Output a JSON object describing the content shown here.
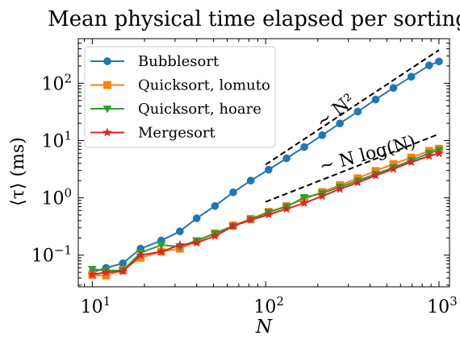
{
  "chart_data": {
    "type": "line",
    "title": "Mean physical time elapsed per sorting",
    "xlabel": "N",
    "ylabel": "⟨τ⟩ (ms)",
    "xscale": "log",
    "yscale": "log",
    "xlim": [
      8.3,
      1150
    ],
    "ylim": [
      0.028,
      600
    ],
    "x_ticks": [
      {
        "value": 10,
        "base": "10",
        "exp": "1"
      },
      {
        "value": 100,
        "base": "10",
        "exp": "2"
      },
      {
        "value": 1000,
        "base": "10",
        "exp": "3"
      }
    ],
    "y_ticks": [
      {
        "value": 0.1,
        "base": "10",
        "exp": "−1"
      },
      {
        "value": 1,
        "base": "10",
        "exp": "0"
      },
      {
        "value": 10,
        "base": "10",
        "exp": "1"
      },
      {
        "value": 100,
        "base": "10",
        "exp": "2"
      }
    ],
    "legend_position": "top-left",
    "grid": false,
    "x": [
      10,
      12,
      15,
      19,
      25,
      32,
      40,
      51,
      65,
      82,
      104,
      132,
      167,
      212,
      268,
      340,
      431,
      546,
      692,
      877,
      1000
    ],
    "series": [
      {
        "name": "Bubblesort",
        "color": "#1f77b4",
        "marker": "circle",
        "values": [
          0.05,
          0.06,
          0.072,
          0.13,
          0.18,
          0.26,
          0.44,
          0.72,
          1.25,
          2.0,
          3.1,
          4.9,
          7.7,
          12.4,
          19.9,
          32,
          52,
          83,
          130,
          205,
          240
        ]
      },
      {
        "name": "Quicksort, lomuto",
        "color": "#ff7f0e",
        "marker": "square",
        "values": [
          0.045,
          0.044,
          0.055,
          0.09,
          0.115,
          0.13,
          0.175,
          0.24,
          0.33,
          0.43,
          0.57,
          0.72,
          0.95,
          1.27,
          1.66,
          2.2,
          2.95,
          3.9,
          5.05,
          6.6,
          7.2
        ]
      },
      {
        "name": "Quicksort, hoare",
        "color": "#2ca02c",
        "marker": "triangle-down",
        "values": [
          0.057,
          0.054,
          0.054,
          0.11,
          0.15,
          0.14,
          0.18,
          0.24,
          0.32,
          0.42,
          0.56,
          0.7,
          1.02,
          1.2,
          1.55,
          2.0,
          2.6,
          3.4,
          4.5,
          6.0,
          6.8
        ]
      },
      {
        "name": "Mergesort",
        "color": "#d62728",
        "marker": "star",
        "values": [
          0.046,
          0.05,
          0.052,
          0.1,
          0.115,
          0.15,
          0.165,
          0.215,
          0.32,
          0.41,
          0.51,
          0.64,
          0.81,
          1.07,
          1.42,
          1.85,
          2.45,
          3.2,
          4.2,
          5.35,
          5.95
        ]
      }
    ],
    "reference_lines": [
      {
        "label": "∼ N²",
        "x": [
          100,
          1000
        ],
        "y": [
          3.8,
          380
        ]
      },
      {
        "label": "∼ N log(N)",
        "x": [
          100,
          1000
        ],
        "y": [
          0.85,
          13
        ]
      }
    ]
  }
}
